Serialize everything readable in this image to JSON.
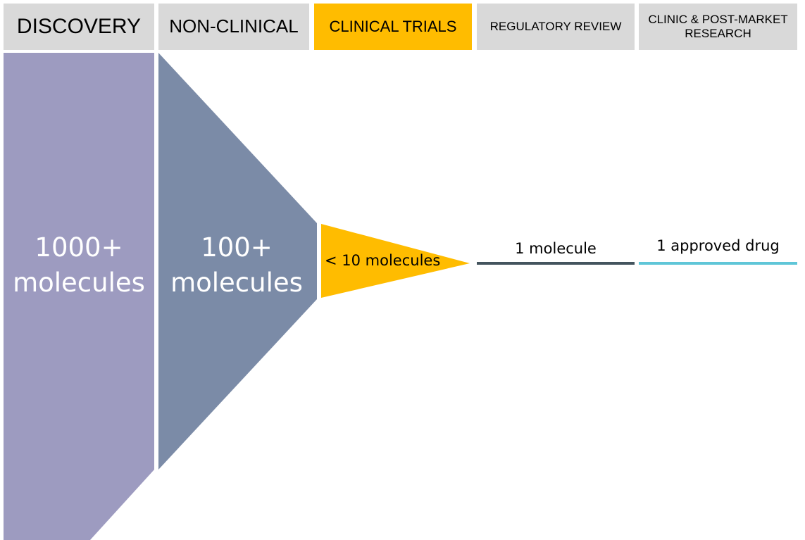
{
  "stages": [
    {
      "id": "discovery",
      "header": "DISCOVERY",
      "count_label": "1000+ molecules",
      "color": "#9d9bc0",
      "active": false
    },
    {
      "id": "non-clinical",
      "header": "NON-CLINICAL",
      "count_label": "100+ molecules",
      "color": "#7b8ba7",
      "active": false
    },
    {
      "id": "clinical-trials",
      "header": "CLINICAL TRIALS",
      "count_label": "< 10 molecules",
      "color": "#ffbc00",
      "active": true
    },
    {
      "id": "regulatory-review",
      "header": "REGULATORY REVIEW",
      "count_label": "1 molecule",
      "color": "#44545e",
      "active": false
    },
    {
      "id": "clinic-post-market",
      "header": "CLINIC & POST-MARKET RESEARCH",
      "count_label": "1 approved drug",
      "color": "#5fc6d8",
      "active": false
    }
  ],
  "colors": {
    "header_bg": "#d9d9d9",
    "header_active_bg": "#ffbc00",
    "page_bg": "#ffffff"
  }
}
